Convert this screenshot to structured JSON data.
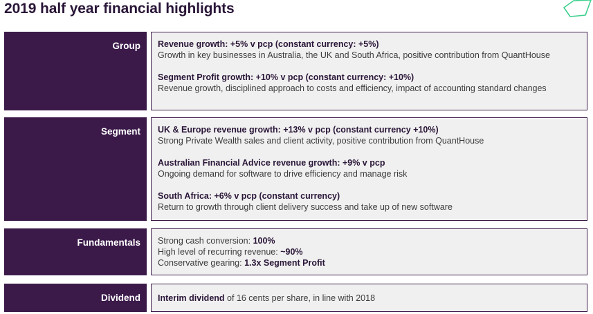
{
  "title": "2019 half year financial highlights",
  "colors": {
    "label_bg": "#3b1a4a",
    "box_bg": "#f0f0f0",
    "accent": "#3ccf8e"
  },
  "logo_icon": "green-outline-shape-icon",
  "group": {
    "label": "Group",
    "items": [
      {
        "heading": "Revenue growth: +5% v pcp (constant currency: +5%)",
        "text": "Growth in key businesses in Australia, the UK and South Africa, positive contribution from QuantHouse"
      },
      {
        "heading": "Segment Profit growth: +10% v pcp (constant currency: +10%)",
        "text": "Revenue growth, disciplined approach to costs and efficiency, impact of accounting standard changes"
      }
    ]
  },
  "segment": {
    "label": "Segment",
    "items": [
      {
        "heading": "UK & Europe revenue growth: +13% v pcp (constant currency +10%)",
        "text": "Strong Private Wealth sales and client activity, positive contribution from QuantHouse"
      },
      {
        "heading": "Australian Financial Advice revenue growth: +9% v pcp",
        "text": "Ongoing demand for software to drive efficiency and manage risk"
      },
      {
        "heading": "South Africa: +6% v pcp (constant currency)",
        "text": "Return to growth through client delivery success and take up of new software"
      }
    ]
  },
  "fundamentals": {
    "label": "Fundamentals",
    "lines": [
      {
        "text": "Strong cash conversion: ",
        "bold": "100%"
      },
      {
        "text": "High level of recurring revenue: ",
        "bold": "~90%"
      },
      {
        "text": "Conservative gearing: ",
        "bold": "1.3x Segment Profit"
      }
    ]
  },
  "dividend": {
    "label": "Dividend",
    "bold": "Interim dividend",
    "text": " of 16 cents per share, in line with 2018"
  }
}
